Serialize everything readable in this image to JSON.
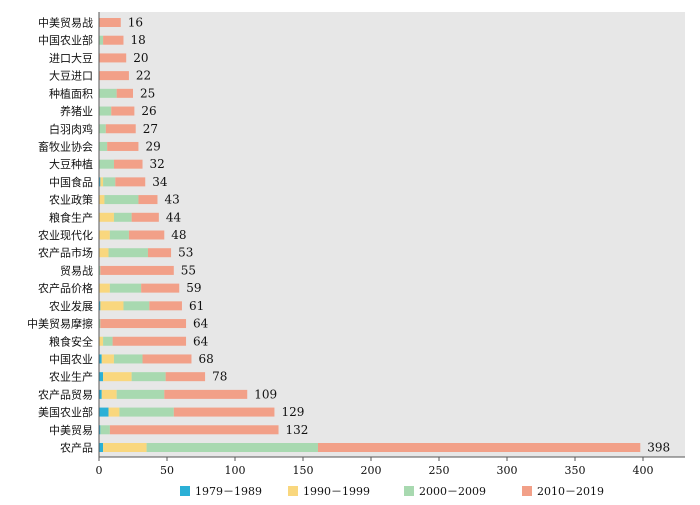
{
  "chart_data": {
    "type": "bar",
    "orientation": "horizontal",
    "stacked": true,
    "categories": [
      "中美贸易战",
      "中国农业部",
      "进口大豆",
      "大豆进口",
      "种植面积",
      "养猪业",
      "白羽肉鸡",
      "畜牧业协会",
      "大豆种植",
      "中国食品",
      "农业政策",
      "粮食生产",
      "农业现代化",
      "农产品市场",
      "贸易战",
      "农产品价格",
      "农业发展",
      "中美贸易摩擦",
      "粮食安全",
      "中国农业",
      "农业生产",
      "农产品贸易",
      "美国农业部",
      "中美贸易",
      "农产品"
    ],
    "totals": [
      16,
      18,
      20,
      22,
      25,
      26,
      27,
      29,
      32,
      34,
      43,
      44,
      48,
      53,
      55,
      59,
      61,
      64,
      64,
      68,
      78,
      109,
      129,
      132,
      398
    ],
    "series": [
      {
        "name": "1979－1989",
        "color": "#2bb0d6",
        "values": [
          0,
          0,
          0,
          0,
          0,
          0,
          0,
          0,
          0,
          1,
          0,
          0,
          0,
          0,
          0,
          0,
          1,
          0,
          0,
          2,
          3,
          2,
          7,
          1,
          3
        ]
      },
      {
        "name": "1990－1999",
        "color": "#f9d77e",
        "values": [
          0,
          0,
          0,
          0,
          0,
          0,
          0,
          0,
          0,
          2,
          4,
          11,
          8,
          7,
          0,
          8,
          17,
          0,
          3,
          9,
          21,
          11,
          8,
          0,
          32
        ]
      },
      {
        "name": "2000－2009",
        "color": "#a8d9b0",
        "values": [
          0,
          3,
          0,
          0,
          13,
          9,
          5,
          6,
          11,
          9,
          25,
          13,
          14,
          29,
          1,
          23,
          19,
          1,
          7,
          21,
          25,
          35,
          40,
          7,
          126
        ]
      },
      {
        "name": "2010－2019",
        "color": "#f2a088",
        "values": [
          16,
          15,
          20,
          22,
          12,
          17,
          22,
          23,
          21,
          22,
          14,
          20,
          26,
          17,
          54,
          28,
          24,
          63,
          54,
          36,
          29,
          61,
          74,
          124,
          237
        ]
      }
    ],
    "xlim": [
      0,
      400
    ],
    "xticks": [
      "0",
      "50",
      "100",
      "150",
      "200",
      "250",
      "300",
      "350",
      "400"
    ],
    "legend_position": "bottom",
    "grid": false
  }
}
